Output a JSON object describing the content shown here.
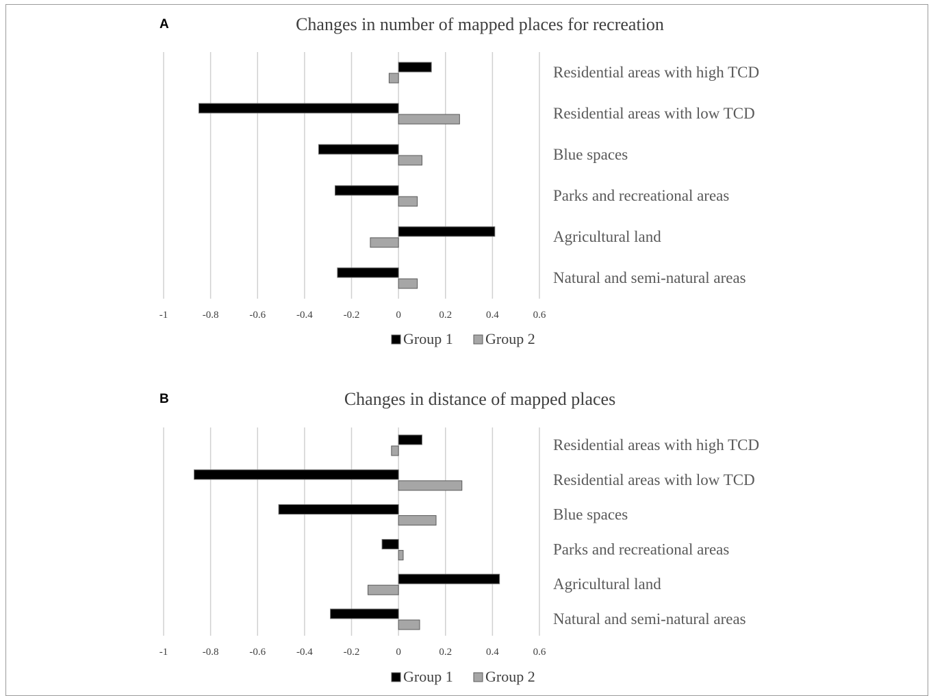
{
  "chart_data": [
    {
      "type": "bar",
      "orientation": "horizontal",
      "panel_label": "A",
      "title": "Changes  in number  of mapped places  for recreation",
      "categories": [
        "Residential areas with high TCD",
        "Residential areas with low TCD",
        "Blue spaces",
        "Parks and recreational areas",
        "Agricultural land",
        "Natural and semi-natural areas"
      ],
      "series": [
        {
          "name": "Group 1",
          "color": "#000000",
          "values": [
            0.14,
            -0.85,
            -0.34,
            -0.27,
            0.41,
            -0.26
          ]
        },
        {
          "name": "Group 2",
          "color": "#a6a6a6",
          "values": [
            -0.04,
            0.26,
            0.1,
            0.08,
            -0.12,
            0.08
          ]
        }
      ],
      "xlim": [
        -1,
        0.6
      ],
      "xticks": [
        -1,
        -0.8,
        -0.6,
        -0.4,
        -0.2,
        0,
        0.2,
        0.4,
        0.6
      ],
      "xtick_labels": [
        "-1",
        "-0.8",
        "-0.6",
        "-0.4",
        "-0.2",
        "0",
        "0.2",
        "0.4",
        "0.6"
      ],
      "grid": true,
      "legend_position": "bottom"
    },
    {
      "type": "bar",
      "orientation": "horizontal",
      "panel_label": "B",
      "title": "Changes  in distance  of mapped places",
      "categories": [
        "Residential areas with high TCD",
        "Residential areas with low TCD",
        "Blue spaces",
        "Parks and recreational areas",
        "Agricultural land",
        "Natural and semi-natural areas"
      ],
      "series": [
        {
          "name": "Group 1",
          "color": "#000000",
          "values": [
            0.1,
            -0.87,
            -0.51,
            -0.07,
            0.43,
            -0.29
          ]
        },
        {
          "name": "Group 2",
          "color": "#a6a6a6",
          "values": [
            -0.03,
            0.27,
            0.16,
            0.02,
            -0.13,
            0.09
          ]
        }
      ],
      "xlim": [
        -1,
        0.6
      ],
      "xticks": [
        -1,
        -0.8,
        -0.6,
        -0.4,
        -0.2,
        0,
        0.2,
        0.4,
        0.6
      ],
      "xtick_labels": [
        "-1",
        "-0.8",
        "-0.6",
        "-0.4",
        "-0.2",
        "0",
        "0.2",
        "0.4",
        "0.6"
      ],
      "grid": true,
      "legend_position": "bottom"
    }
  ]
}
